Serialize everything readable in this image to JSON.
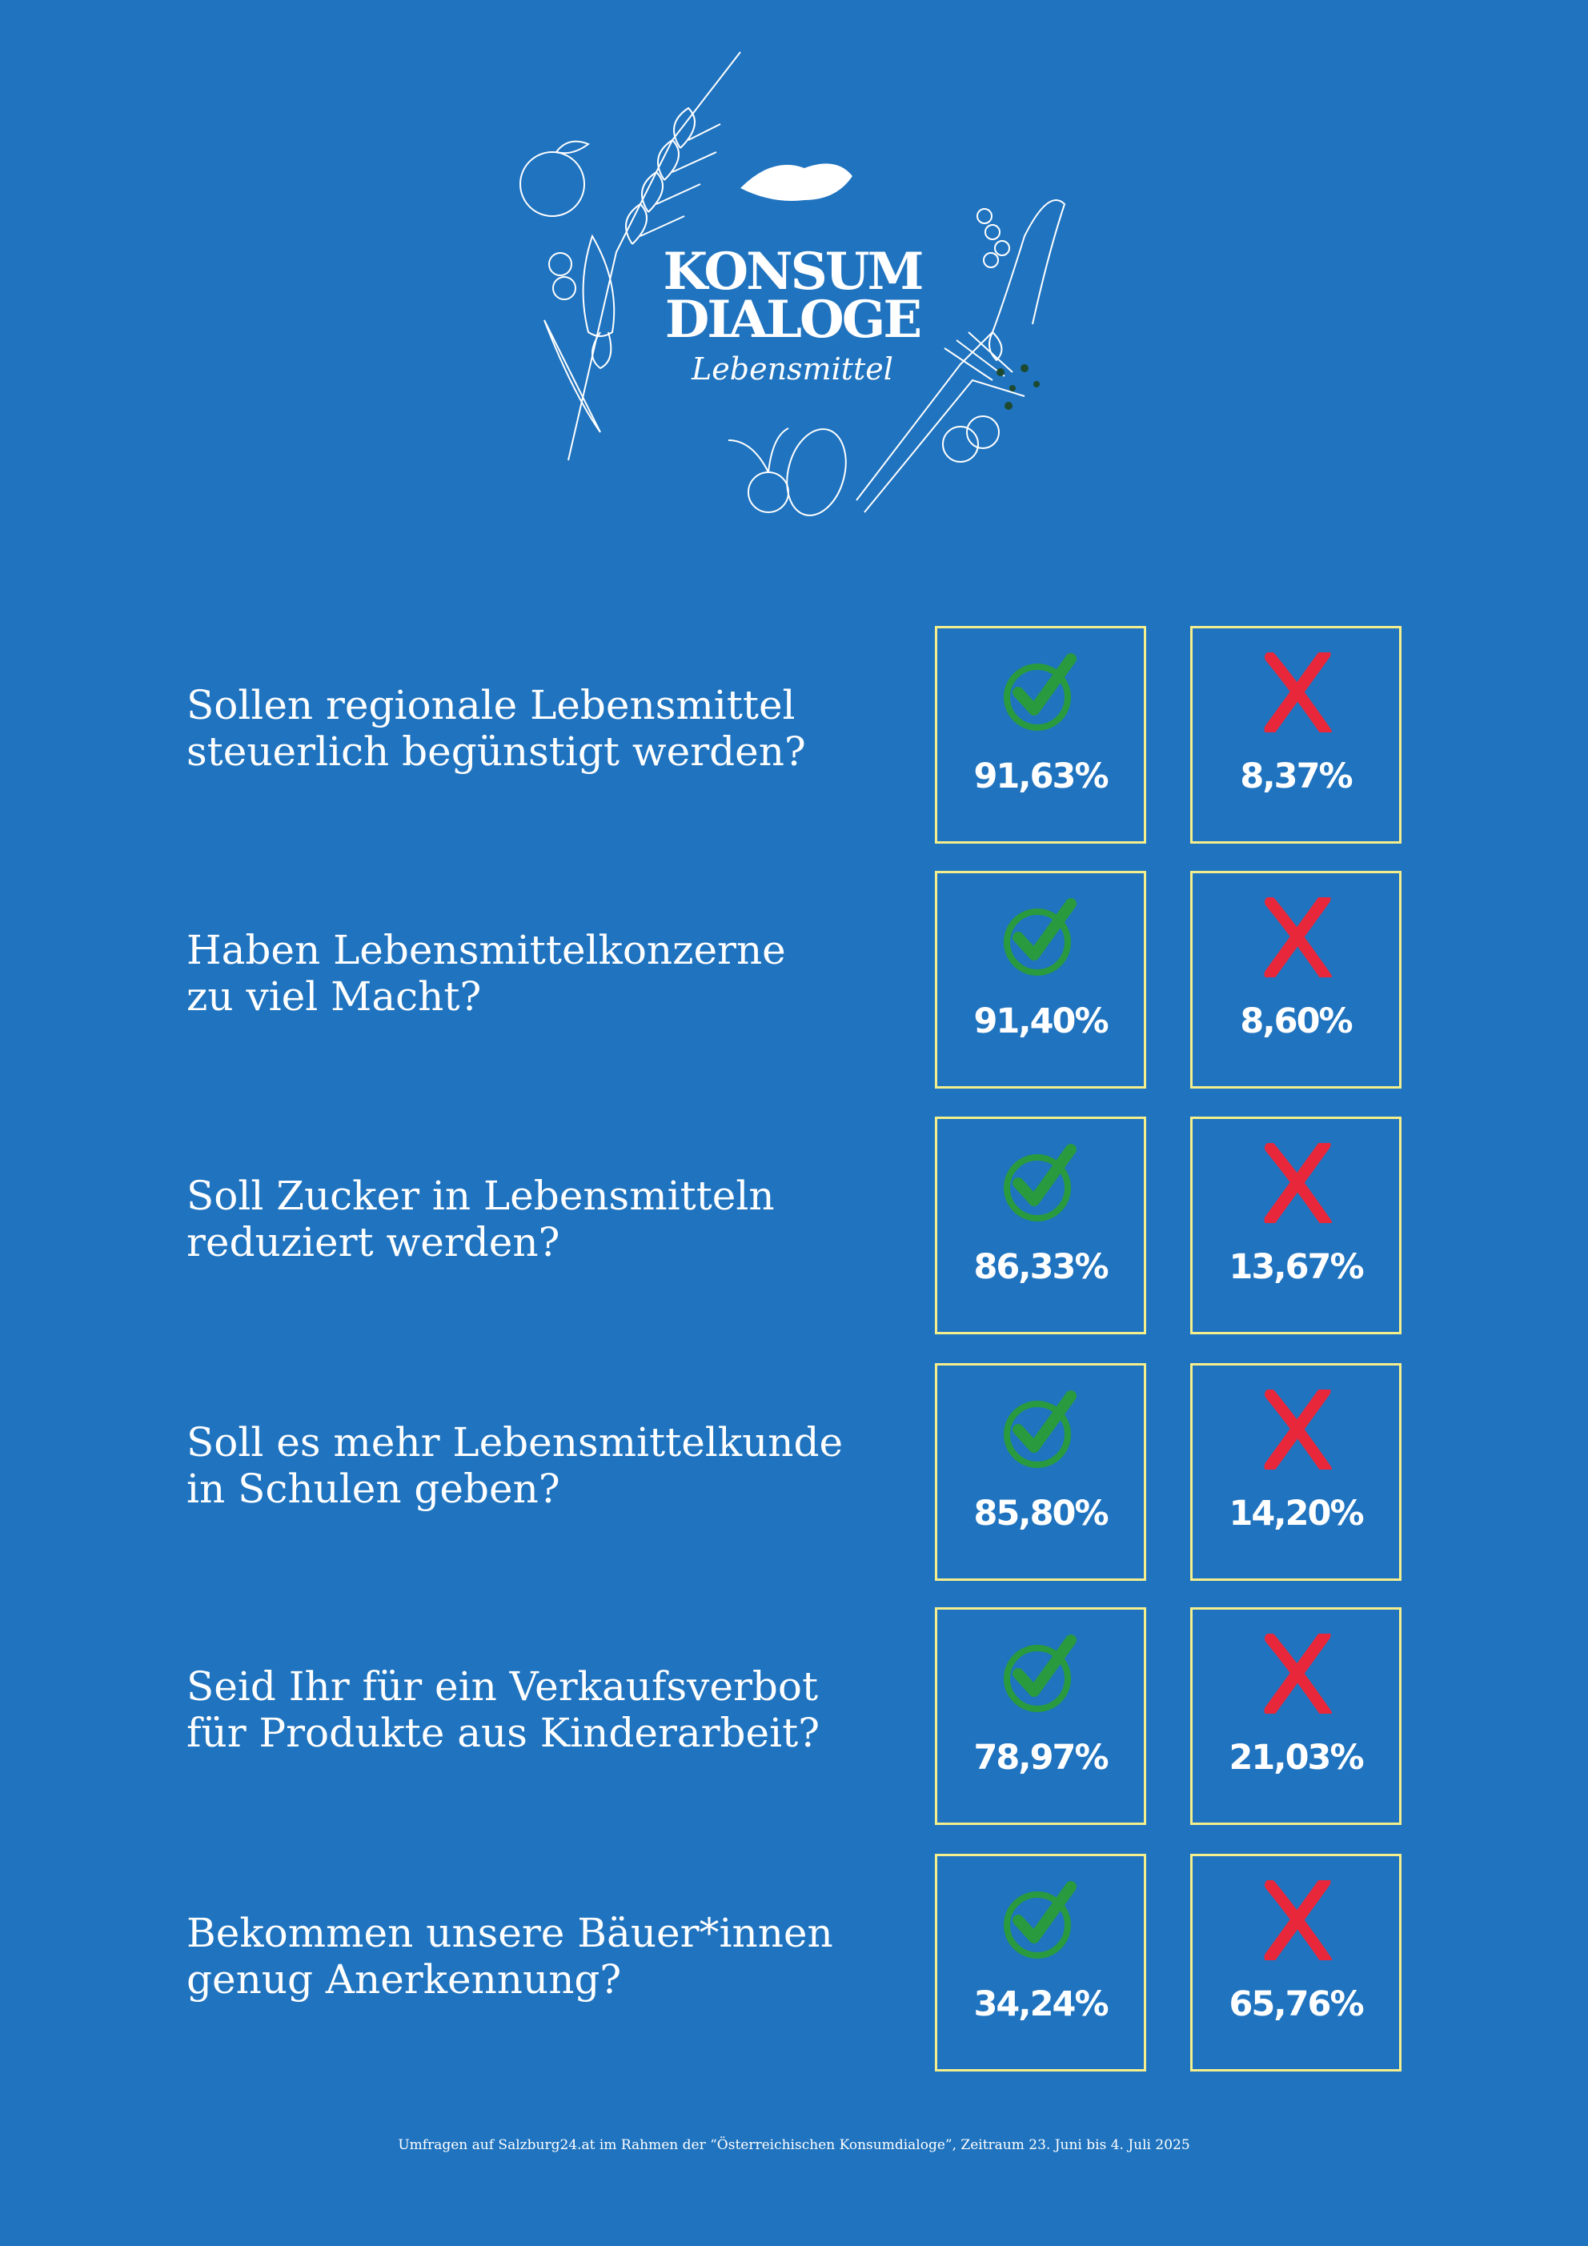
{
  "logo": {
    "line1": "KONSUM",
    "line2": "DIALOGE",
    "subtitle": "Lebensmittel"
  },
  "colors": {
    "background": "#1f73bf",
    "box_border": "#f4ee8c",
    "yes_icon": "#2a9a3e",
    "no_icon": "#e8283a"
  },
  "questions": [
    {
      "lines": [
        "Sollen regionale Lebensmittel",
        "steuerlich begünstigt werden?"
      ],
      "yes": "91,63%",
      "no": "8,37%"
    },
    {
      "lines": [
        "Haben Lebensmittelkonzerne",
        "zu viel Macht?"
      ],
      "yes": "91,40%",
      "no": "8,60%"
    },
    {
      "lines": [
        "Soll Zucker in Lebensmitteln",
        "reduziert werden?"
      ],
      "yes": "86,33%",
      "no": "13,67%"
    },
    {
      "lines": [
        "Soll es mehr Lebensmittelkunde",
        "in Schulen geben?"
      ],
      "yes": "85,80%",
      "no": "14,20%"
    },
    {
      "lines": [
        "Seid Ihr für ein Verkaufsverbot",
        "für Produkte aus Kinderarbeit?"
      ],
      "yes": "78,97%",
      "no": "21,03%"
    },
    {
      "lines": [
        "Bekommen unsere Bäuer*innen",
        "genug Anerkennung?"
      ],
      "yes": "34,24%",
      "no": "65,76%"
    }
  ],
  "footer": "Umfragen auf Salzburg24.at im Rahmen der “Österreichischen Konsumdialoge”, Zeitraum 23. Juni bis 4. Juli 2025"
}
